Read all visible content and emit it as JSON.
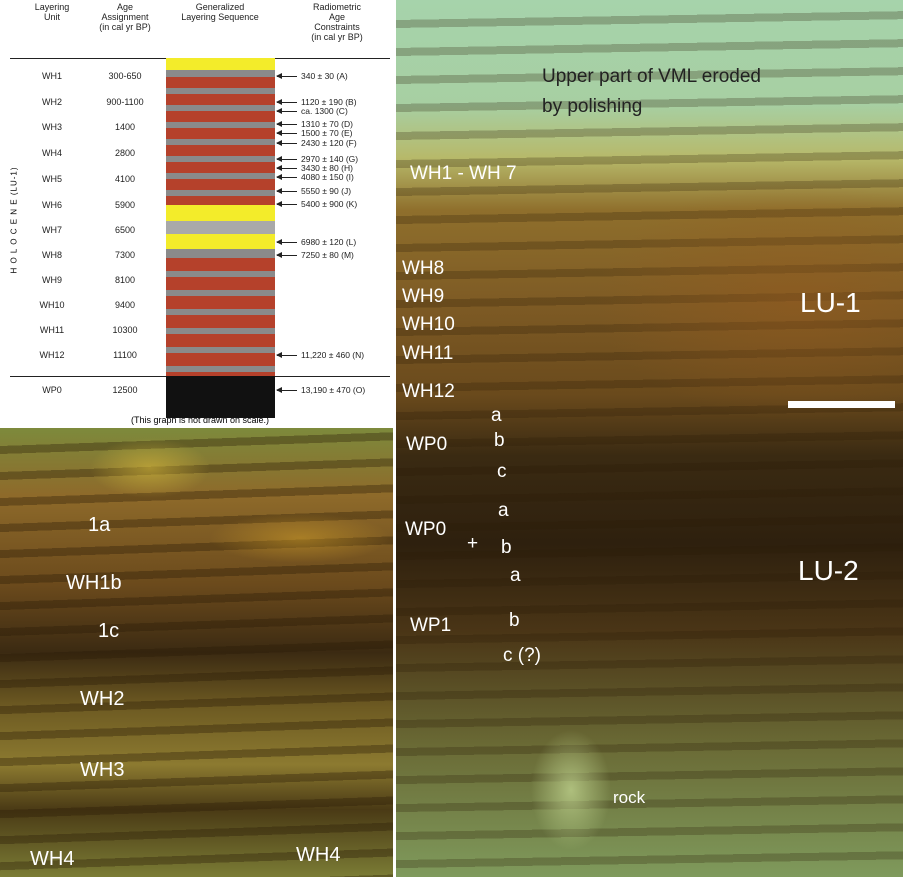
{
  "table": {
    "headers": [
      [
        "Layering",
        "Unit"
      ],
      [
        "Age",
        "Assignment",
        "(in cal yr BP)"
      ],
      [
        "Generalized",
        "Layering Sequence"
      ],
      [
        "Radiometric",
        "Age Constraints",
        "(in cal yr BP)"
      ]
    ],
    "side_label": "H O L O C E N E (LU-1)",
    "rows": [
      [
        "WH1",
        "300-650"
      ],
      [
        "WH2",
        "900-1100"
      ],
      [
        "WH3",
        "1400"
      ],
      [
        "WH4",
        "2800"
      ],
      [
        "WH5",
        "4100"
      ],
      [
        "WH6",
        "5900"
      ],
      [
        "WH7",
        "6500"
      ],
      [
        "WH8",
        "7300"
      ],
      [
        "WH9",
        "8100"
      ],
      [
        "WH10",
        "9400"
      ],
      [
        "WH11",
        "10300"
      ],
      [
        "WH12",
        "11100"
      ],
      [
        "WP0",
        "12500"
      ]
    ],
    "constraints": [
      "340 ± 30  (A)",
      "1120 ± 190  (B)",
      "ca. 1300  (C)",
      "1310 ± 70  (D)",
      "1500 ± 70  (E)",
      "2430 ± 120  (F)",
      "2970 ± 140  (G)",
      "3430 ± 80  (H)",
      "4080 ± 150  (I)",
      "5550 ± 90  (J)",
      "5400 ± 900  (K)",
      "6980 ± 120  (L)",
      "7250 ± 80  (M)",
      "11,220 ± 460  (N)",
      "13,190 ± 470  (O)"
    ],
    "note": "(This graph is not drawn on scale.)"
  },
  "left_photo": {
    "labels": [
      "1a",
      "WH1b",
      "1c",
      "WH2",
      "WH3",
      "WH4",
      "WH4"
    ]
  },
  "right_photo": {
    "caption": [
      "Upper part of VML eroded",
      "by polishing"
    ],
    "labels": [
      "WH1 - WH 7",
      "WH8",
      "WH9",
      "WH10",
      "WH11",
      "WH12",
      "WP0",
      "a",
      "b",
      "c",
      "a",
      "WP0",
      "+",
      "b",
      "a",
      "WP1",
      "b",
      "c (?)",
      "rock"
    ],
    "zones": [
      "LU-1",
      "LU-2"
    ]
  }
}
